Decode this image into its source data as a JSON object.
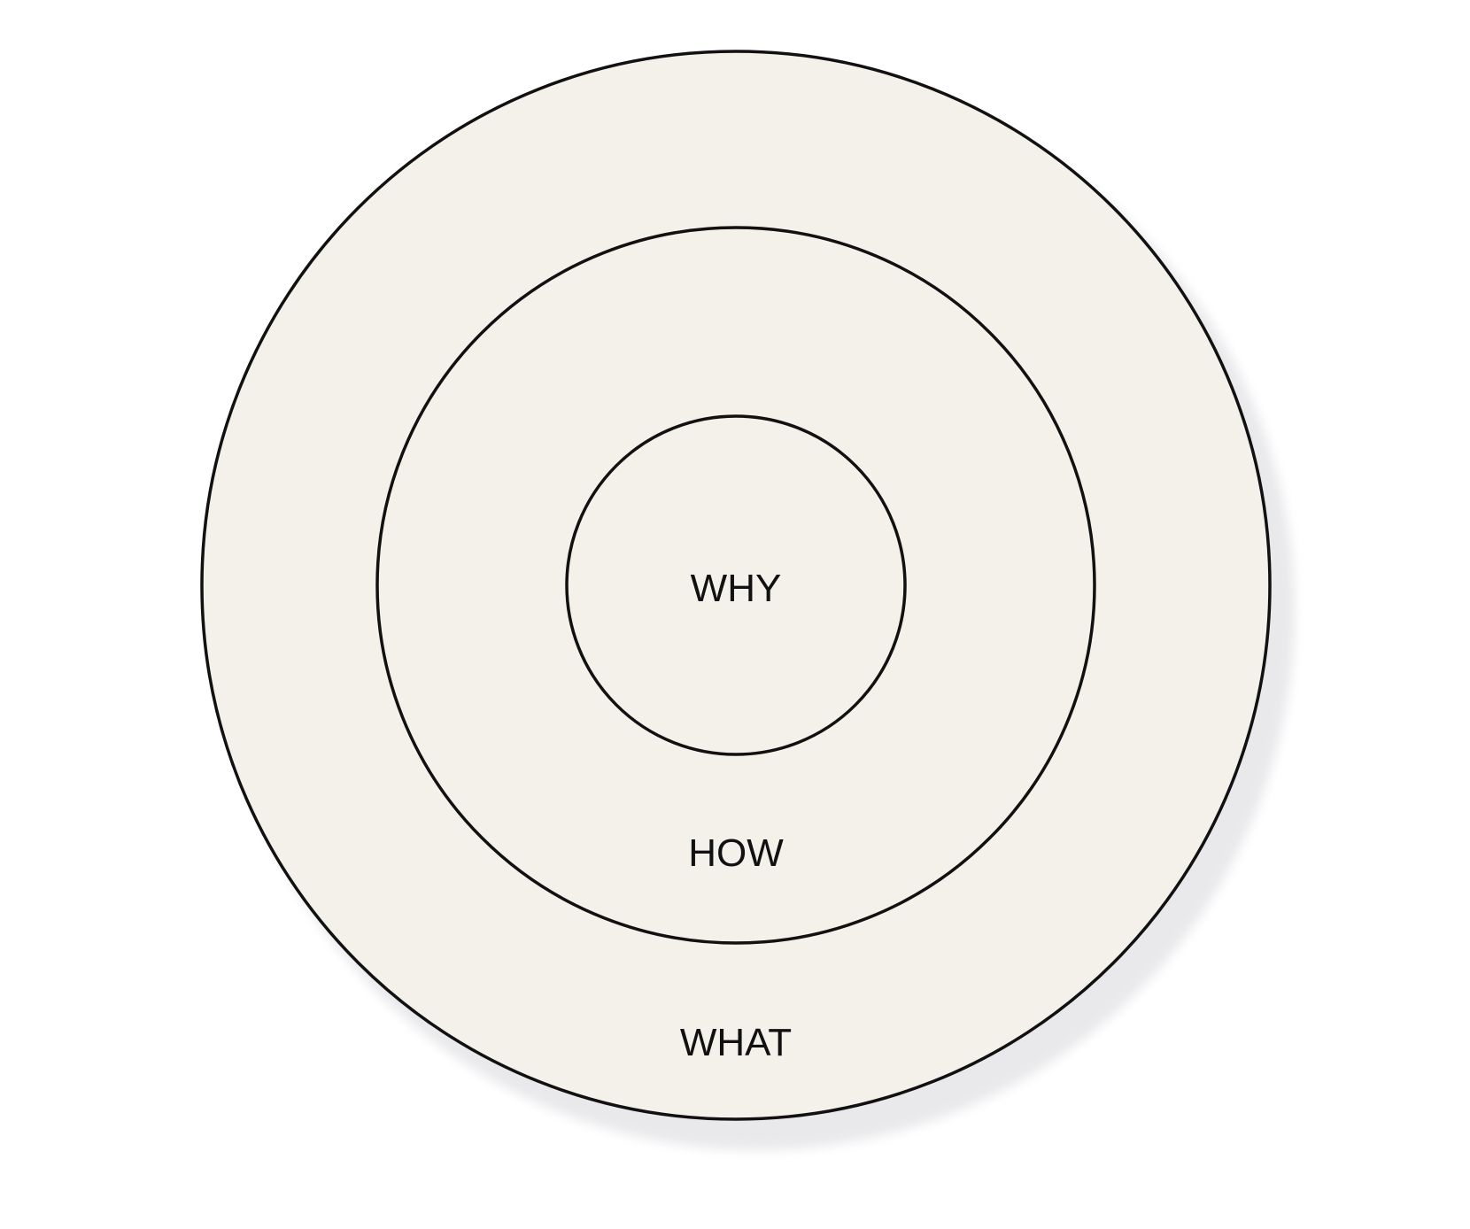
{
  "diagram": {
    "rings": {
      "inner": {
        "label": "WHY"
      },
      "middle": {
        "label": "HOW"
      },
      "outer": {
        "label": "WHAT"
      }
    },
    "colors": {
      "fill": "#f3f1ea",
      "stroke": "#111111",
      "shadow": "#e9e9ec",
      "background": "#ffffff"
    }
  }
}
